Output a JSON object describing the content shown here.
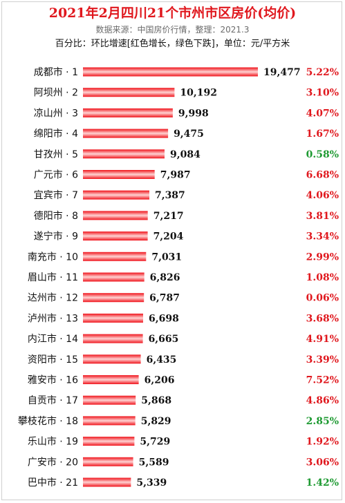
{
  "header": {
    "title": "2021年2月四川21个市州市区房价(均价)",
    "source": "数据来源：中国房价行情，整理：2021.3",
    "note": "百分比：环比增速[红色增长，绿色下跌]，单位：元/平方米"
  },
  "colors": {
    "bar": "#f0141c",
    "bar_highlight": "#ffd2d2",
    "pct_up": "#e0181e",
    "pct_down": "#1e9a32",
    "value_text": "#111111"
  },
  "chart_data": {
    "type": "bar",
    "orientation": "horizontal",
    "unit": "元/平方米",
    "categories": [
      "成都市 · 1",
      "阿坝州 · 2",
      "凉山州 · 3",
      "绵阳市 · 4",
      "甘孜州 · 5",
      "广元市 · 6",
      "宜宾市 · 7",
      "德阳市 · 8",
      "遂宁市 · 9",
      "南充市 · 10",
      "眉山市 · 11",
      "达州市 · 12",
      "泸州市 · 13",
      "内江市 · 14",
      "资阳市 · 15",
      "雅安市 · 16",
      "自贡市 · 17",
      "攀枝花市 · 18",
      "乐山市 · 19",
      "广安市 · 20",
      "巴中市 · 21"
    ],
    "values": [
      19477,
      10192,
      9998,
      9475,
      9084,
      7987,
      7387,
      7217,
      7204,
      7031,
      6826,
      6787,
      6698,
      6665,
      6435,
      6206,
      5868,
      5829,
      5729,
      5589,
      5339
    ],
    "value_labels": [
      "19,477",
      "10,192",
      "9,998",
      "9,475",
      "9,084",
      "7,987",
      "7,387",
      "7,217",
      "7,204",
      "7,031",
      "6,826",
      "6,787",
      "6,698",
      "6,665",
      "6,435",
      "6,206",
      "5,868",
      "5,829",
      "5,729",
      "5,589",
      "5,339"
    ],
    "change_labels": [
      "5.22%",
      "3.10%",
      "4.07%",
      "1.67%",
      "0.58%",
      "6.68%",
      "4.06%",
      "3.81%",
      "3.34%",
      "2.99%",
      "1.08%",
      "0.06%",
      "3.68%",
      "4.91%",
      "3.39%",
      "7.52%",
      "4.86%",
      "2.85%",
      "1.92%",
      "3.06%",
      "1.42%"
    ],
    "change_direction": [
      "up",
      "up",
      "up",
      "up",
      "down",
      "up",
      "up",
      "up",
      "up",
      "up",
      "up",
      "up",
      "up",
      "up",
      "up",
      "up",
      "up",
      "down",
      "up",
      "up",
      "down"
    ]
  }
}
